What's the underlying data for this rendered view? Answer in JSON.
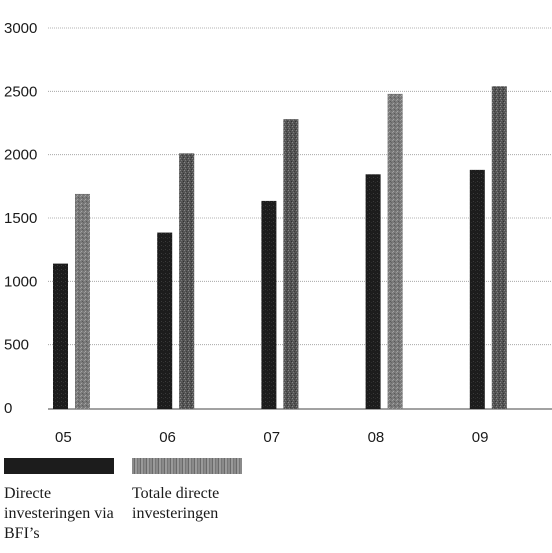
{
  "chart_data": {
    "type": "bar",
    "categories": [
      "05",
      "06",
      "07",
      "08",
      "09"
    ],
    "series": [
      {
        "name": "Directe investeringen via BFI's",
        "values": [
          1140,
          1385,
          1635,
          1845,
          1880
        ],
        "color": "#1c1c1c"
      },
      {
        "name": "Totale directe investeringen",
        "values": [
          1690,
          2010,
          2280,
          2480,
          2540
        ],
        "color": "#6e6e6e"
      }
    ],
    "yticks": [
      0,
      500,
      1000,
      1500,
      2000,
      2500,
      3000
    ],
    "ylim": [
      0,
      3000
    ],
    "grid": true,
    "legend_position": "bottom-left"
  },
  "legend": {
    "items": [
      {
        "label": "Directe investeringen via BFI’s"
      },
      {
        "label": "Totale directe investeringen"
      }
    ]
  }
}
